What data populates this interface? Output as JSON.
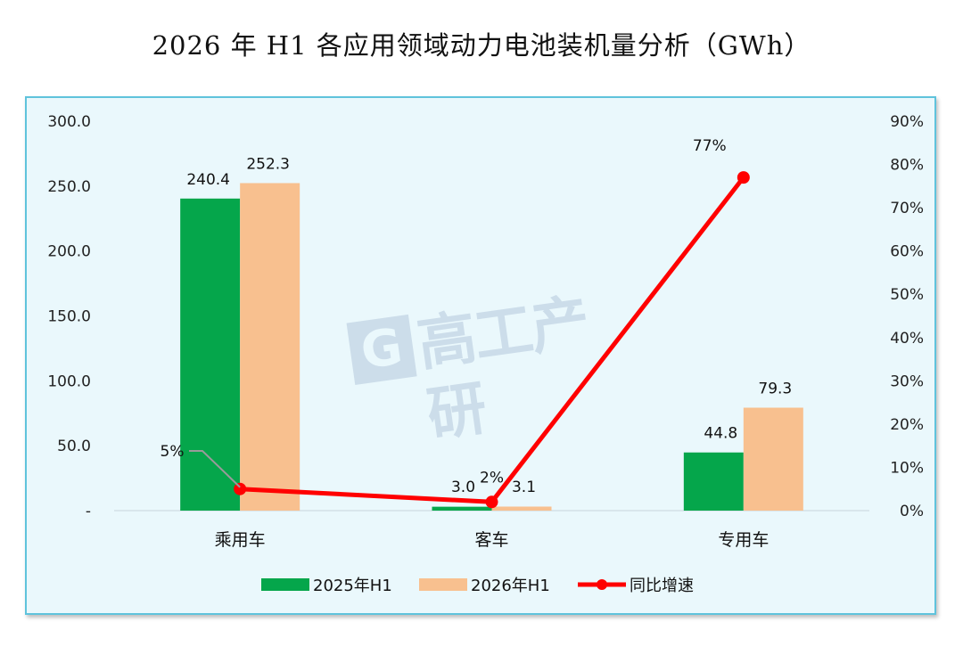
{
  "title": "2026 年 H1 各应用领域动力电池装机量分析（GWh）",
  "watermark": {
    "letter": "G",
    "text": "高工产研"
  },
  "colors": {
    "series_2025": "#05a64b",
    "series_2026": "#f8c08f",
    "growth_line": "#ff0000",
    "panel_bg": "#eaf8fc",
    "panel_border": "#5fc3dc"
  },
  "chart_data": {
    "type": "bar",
    "categories": [
      "乘用车",
      "客车",
      "专用车"
    ],
    "series": [
      {
        "name": "2025年H1",
        "type": "bar",
        "axis": "left",
        "values": [
          240.4,
          3.0,
          44.8
        ],
        "labels": [
          "240.4",
          "3.0",
          "44.8"
        ]
      },
      {
        "name": "2026年H1",
        "type": "bar",
        "axis": "left",
        "values": [
          252.3,
          3.1,
          79.3
        ],
        "labels": [
          "252.3",
          "3.1",
          "79.3"
        ]
      },
      {
        "name": "同比增速",
        "type": "line",
        "axis": "right",
        "values": [
          0.05,
          0.02,
          0.77
        ],
        "labels": [
          "5%",
          "2%",
          "77%"
        ]
      }
    ],
    "y_left": {
      "ylim": [
        0,
        300
      ],
      "ticks": [
        0,
        50,
        100,
        150,
        200,
        250,
        300
      ],
      "tick_labels": [
        "-",
        "50.0",
        "100.0",
        "150.0",
        "200.0",
        "250.0",
        "300.0"
      ]
    },
    "y_right": {
      "ylim": [
        0,
        0.9
      ],
      "ticks": [
        0,
        0.1,
        0.2,
        0.3,
        0.4,
        0.5,
        0.6,
        0.7,
        0.8,
        0.9
      ],
      "tick_labels": [
        "0%",
        "10%",
        "20%",
        "30%",
        "40%",
        "50%",
        "60%",
        "70%",
        "80%",
        "90%"
      ]
    },
    "grid": false,
    "legend": "bottom-center"
  }
}
